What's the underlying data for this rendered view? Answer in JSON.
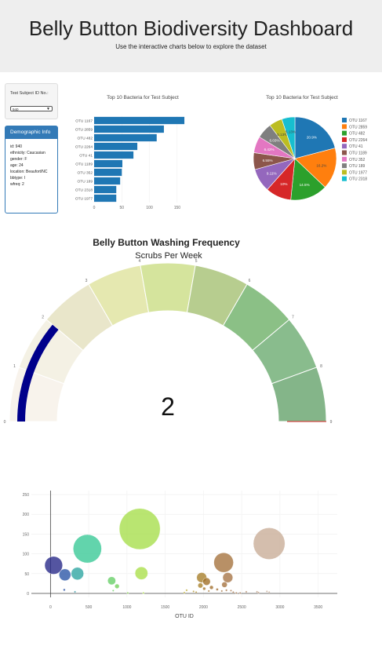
{
  "header": {
    "title": "Belly Button Biodiversity Dashboard",
    "subtitle": "Use the interactive charts below to explore the dataset"
  },
  "selector": {
    "label": "Test Subject ID No.:",
    "value": "940"
  },
  "demographics": {
    "title": "Demographic Info",
    "rows": [
      "id: 940",
      "ethnicity: Caucasian",
      "gender: F",
      "age: 24",
      "location: Beaufort/NC",
      "bbtype: I",
      "wfreq: 2"
    ]
  },
  "colors": {
    "bar": "#1f77b4",
    "pie": [
      "#1f77b4",
      "#ff7f0e",
      "#2ca02c",
      "#d62728",
      "#9467bd",
      "#8c564b",
      "#e377c2",
      "#7f7f7f",
      "#bcbd22",
      "#17becf"
    ],
    "gauge": [
      "#f8f3ec",
      "#f4f1e4",
      "#e9e6ca",
      "#e5e8b0",
      "#d5e49d",
      "#b7cd8f",
      "#8bc086",
      "#89bc8d",
      "#84b589"
    ],
    "needle": "#00008b"
  },
  "chart_data": [
    {
      "type": "bar",
      "orientation": "horizontal",
      "title": "Top 10 Bacteria for Test Subject",
      "categories": [
        "OTU 1167",
        "OTU 2859",
        "OTU 482",
        "OTU 2264",
        "OTU 41",
        "OTU 1189",
        "OTU 352",
        "OTU 189",
        "OTU 2318",
        "OTU 1977"
      ],
      "values": [
        163,
        126,
        113,
        78,
        71,
        51,
        50,
        47,
        40,
        40
      ],
      "xticks": [
        "0",
        "50",
        "100",
        "150"
      ],
      "xlim": [
        0,
        170
      ]
    },
    {
      "type": "pie",
      "title": "Top 10 Bacteria for Test Subject",
      "labels": [
        "OTU 1167",
        "OTU 2859",
        "OTU 482",
        "OTU 2264",
        "OTU 41",
        "OTU 1189",
        "OTU 352",
        "OTU 189",
        "OTU 1977",
        "OTU 2318"
      ],
      "values": [
        163,
        126,
        113,
        78,
        71,
        51,
        50,
        47,
        40,
        40
      ],
      "slice_labels": [
        "20.9%",
        "16.2%",
        "14.5%",
        "10%",
        "9.11%",
        "6.55%",
        "6.42%",
        "6.03%",
        "5.13%",
        "5.13%"
      ],
      "legend": "right"
    },
    {
      "type": "gauge",
      "title": "Belly Button Washing Frequency",
      "subtitle": "Scrubs Per Week",
      "range": [
        0,
        9
      ],
      "ticks": [
        "0",
        "1",
        "2",
        "3",
        "4",
        "5",
        "6",
        "7",
        "8",
        "9"
      ],
      "value": 2,
      "value_label": "2"
    },
    {
      "type": "scatter",
      "marker": "bubble",
      "xlabel": "OTU ID",
      "xticks": [
        "0",
        "500",
        "1000",
        "1500",
        "2000",
        "2500",
        "3000",
        "3500"
      ],
      "yticks": [
        "0",
        "50",
        "100",
        "150",
        "200",
        "250"
      ],
      "xlim": [
        -250,
        3750
      ],
      "ylim": [
        -10,
        260
      ],
      "points": [
        {
          "x": 1167,
          "y": 163
        },
        {
          "x": 2859,
          "y": 126
        },
        {
          "x": 482,
          "y": 113
        },
        {
          "x": 41,
          "y": 71
        },
        {
          "x": 2264,
          "y": 78
        },
        {
          "x": 189,
          "y": 47
        },
        {
          "x": 352,
          "y": 50
        },
        {
          "x": 1189,
          "y": 51
        },
        {
          "x": 2318,
          "y": 40
        },
        {
          "x": 1977,
          "y": 40
        },
        {
          "x": 2041,
          "y": 30
        },
        {
          "x": 2275,
          "y": 22
        },
        {
          "x": 1960,
          "y": 20
        },
        {
          "x": 2105,
          "y": 15
        },
        {
          "x": 2180,
          "y": 10
        },
        {
          "x": 2300,
          "y": 8
        },
        {
          "x": 2240,
          "y": 6
        },
        {
          "x": 2010,
          "y": 12
        },
        {
          "x": 2070,
          "y": 6
        },
        {
          "x": 2360,
          "y": 7
        },
        {
          "x": 2560,
          "y": 4
        },
        {
          "x": 2390,
          "y": 3
        },
        {
          "x": 2700,
          "y": 4
        },
        {
          "x": 2720,
          "y": 2
        },
        {
          "x": 2830,
          "y": 5
        },
        {
          "x": 2860,
          "y": 3
        },
        {
          "x": 2480,
          "y": 1
        },
        {
          "x": 2430,
          "y": 1
        },
        {
          "x": 800,
          "y": 32
        },
        {
          "x": 870,
          "y": 18
        },
        {
          "x": 820,
          "y": 7
        },
        {
          "x": 1010,
          "y": 1
        },
        {
          "x": 1215,
          "y": 1
        },
        {
          "x": 180,
          "y": 9
        },
        {
          "x": 320,
          "y": 4
        },
        {
          "x": 1780,
          "y": 8
        },
        {
          "x": 1750,
          "y": 2
        },
        {
          "x": 1870,
          "y": 5
        },
        {
          "x": 1905,
          "y": 3
        }
      ]
    }
  ]
}
